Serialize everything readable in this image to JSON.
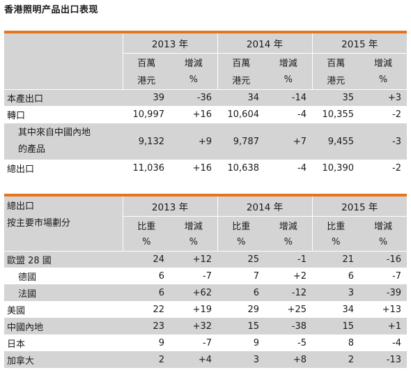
{
  "title": "香港照明产品出口表现",
  "table1": {
    "years": [
      "2013 年",
      "2014 年",
      "2015 年"
    ],
    "unit_top": "百萬",
    "unit_bottom": "港元",
    "chg_top": "增減",
    "chg_bottom": "%",
    "rows": [
      {
        "label": "本產出口",
        "v": [
          "39",
          "-36",
          "34",
          "-14",
          "35",
          "+3"
        ]
      },
      {
        "label": "轉口",
        "v": [
          "10,997",
          "+16",
          "10,604",
          "-4",
          "10,355",
          "-2"
        ]
      },
      {
        "label_line1": "其中來自中國內地",
        "label_line2": "的產品",
        "v": [
          "9,132",
          "+9",
          "9,787",
          "+7",
          "9,455",
          "-3"
        ]
      },
      {
        "label": "總出口",
        "v": [
          "11,036",
          "+16",
          "10,638",
          "-4",
          "10,390",
          "-2"
        ]
      }
    ]
  },
  "table2": {
    "header_line1": "總出口",
    "header_line2": "按主要市場劃分",
    "years": [
      "2013 年",
      "2014 年",
      "2015 年"
    ],
    "share_top": "比重",
    "share_bottom": "%",
    "chg_top": "增減",
    "chg_bottom": "%",
    "rows": [
      {
        "label": "歐盟 28 國",
        "v": [
          "24",
          "+12",
          "25",
          "-1",
          "21",
          "-16"
        ]
      },
      {
        "label": "德國",
        "v": [
          "6",
          "-7",
          "7",
          "+2",
          "6",
          "-7"
        ]
      },
      {
        "label": "法國",
        "v": [
          "6",
          "+62",
          "6",
          "-12",
          "3",
          "-39"
        ]
      },
      {
        "label": "美國",
        "v": [
          "22",
          "+19",
          "29",
          "+25",
          "34",
          "+13"
        ]
      },
      {
        "label": "中國內地",
        "v": [
          "23",
          "+32",
          "15",
          "-38",
          "15",
          "+1"
        ]
      },
      {
        "label": "日本",
        "v": [
          "9",
          "-7",
          "9",
          "-5",
          "8",
          "-4"
        ]
      },
      {
        "label": "加拿大",
        "v": [
          "2",
          "+4",
          "3",
          "+8",
          "2",
          "-13"
        ]
      }
    ]
  },
  "colors": {
    "accent": "#e8731e",
    "header_gray": "#d4d4d4"
  }
}
